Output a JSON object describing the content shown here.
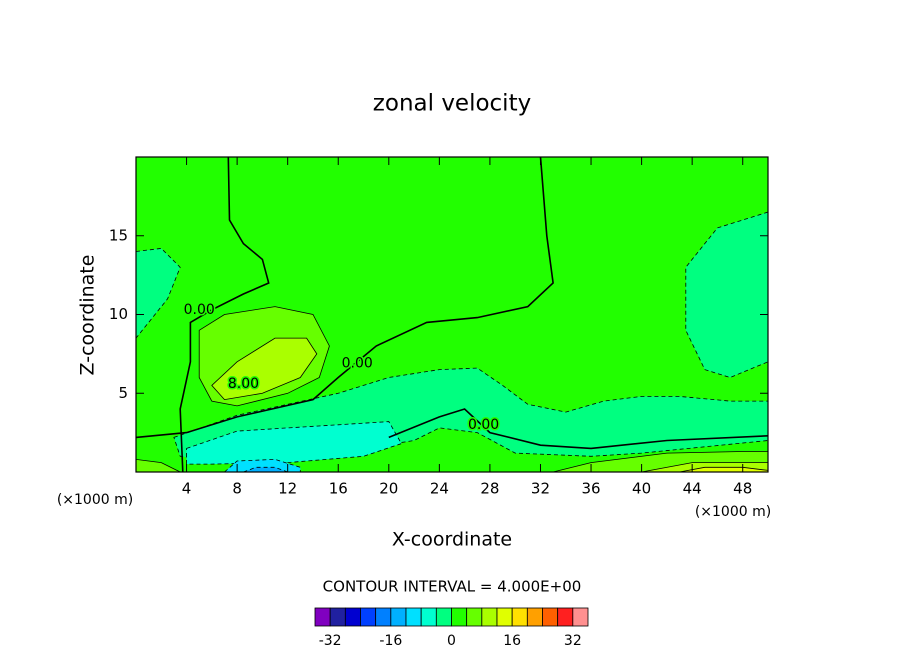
{
  "chart_data": {
    "type": "contour",
    "title": "zonal velocity",
    "xlabel": "X-coordinate",
    "ylabel": "Z-coordinate",
    "x_unit_label": "(×1000 m)",
    "xlim": [
      0,
      50
    ],
    "ylim": [
      0,
      20
    ],
    "xticks": [
      4,
      8,
      12,
      16,
      20,
      24,
      28,
      32,
      36,
      40,
      44,
      48
    ],
    "yticks": [
      5,
      10,
      15
    ],
    "regions": [
      {
        "level": 0,
        "points": [
          [
            0,
            0
          ],
          [
            50,
            0
          ],
          [
            50,
            20
          ],
          [
            0,
            20
          ]
        ]
      },
      {
        "level": -4,
        "points": [
          [
            0,
            14
          ],
          [
            2,
            14.2
          ],
          [
            3.5,
            13
          ],
          [
            2.5,
            11
          ],
          [
            0.5,
            9
          ],
          [
            0,
            8.5
          ]
        ]
      },
      {
        "level": -4,
        "points": [
          [
            50,
            16.5
          ],
          [
            46,
            15.5
          ],
          [
            43.5,
            13
          ],
          [
            43.5,
            9
          ],
          [
            45,
            6.5
          ],
          [
            47,
            6
          ],
          [
            50,
            7
          ]
        ]
      },
      {
        "level": -4,
        "points": [
          [
            3,
            2.2
          ],
          [
            8,
            3.6
          ],
          [
            12,
            4.3
          ],
          [
            16,
            5
          ],
          [
            20,
            6
          ],
          [
            24,
            6.5
          ],
          [
            27,
            6.6
          ],
          [
            29,
            5.5
          ],
          [
            31,
            4.3
          ],
          [
            34,
            3.8
          ],
          [
            37,
            4.5
          ],
          [
            40,
            4.8
          ],
          [
            43,
            4.8
          ],
          [
            47,
            4.5
          ],
          [
            50,
            4.5
          ],
          [
            50,
            2
          ],
          [
            40,
            1.2
          ],
          [
            36,
            1
          ],
          [
            30,
            1.2
          ],
          [
            27,
            2.5
          ],
          [
            24,
            2.8
          ],
          [
            22,
            2
          ],
          [
            18,
            1.5
          ],
          [
            14,
            1
          ],
          [
            10,
            0.8
          ],
          [
            6,
            0.7
          ],
          [
            3.5,
            1
          ]
        ]
      },
      {
        "level": -8,
        "points": [
          [
            4,
            1.5
          ],
          [
            8,
            2.6
          ],
          [
            12,
            2.8
          ],
          [
            16,
            3
          ],
          [
            20,
            3.2
          ],
          [
            21,
            1.8
          ],
          [
            18,
            1
          ],
          [
            12,
            0.6
          ],
          [
            6,
            0.5
          ],
          [
            4,
            0.5
          ]
        ]
      },
      {
        "level": -12,
        "points": [
          [
            7,
            0
          ],
          [
            8,
            0.7
          ],
          [
            11,
            0.8
          ],
          [
            13,
            0.3
          ],
          [
            13,
            0
          ]
        ]
      },
      {
        "level": -16,
        "points": [
          [
            8.5,
            0
          ],
          [
            9.5,
            0.3
          ],
          [
            11,
            0.3
          ],
          [
            12,
            0
          ]
        ]
      },
      {
        "level": 4,
        "points": [
          [
            5,
            9
          ],
          [
            7,
            10
          ],
          [
            11,
            10.5
          ],
          [
            14,
            10
          ],
          [
            15.3,
            8
          ],
          [
            14.5,
            6
          ],
          [
            12,
            5
          ],
          [
            8,
            4.2
          ],
          [
            6,
            4.5
          ],
          [
            5,
            6
          ]
        ]
      },
      {
        "level": 8,
        "points": [
          [
            6,
            5.5
          ],
          [
            8,
            7
          ],
          [
            11,
            8.5
          ],
          [
            13.5,
            8.5
          ],
          [
            14.3,
            7.5
          ],
          [
            13,
            6
          ],
          [
            10,
            5
          ],
          [
            7,
            4.6
          ]
        ]
      },
      {
        "level": 4,
        "points": [
          [
            33,
            0
          ],
          [
            36,
            0.6
          ],
          [
            42,
            1.2
          ],
          [
            48,
            1.3
          ],
          [
            50,
            1.3
          ],
          [
            50,
            0
          ]
        ]
      },
      {
        "level": 8,
        "points": [
          [
            40,
            0
          ],
          [
            44,
            0.6
          ],
          [
            50,
            0.6
          ],
          [
            50,
            0
          ]
        ]
      },
      {
        "level": 12,
        "points": [
          [
            43,
            0
          ],
          [
            45,
            0.3
          ],
          [
            48,
            0.3
          ],
          [
            50,
            0.1
          ],
          [
            50,
            0
          ]
        ]
      },
      {
        "level": 4,
        "points": [
          [
            0,
            0
          ],
          [
            0,
            0.8
          ],
          [
            2,
            0.6
          ],
          [
            3.5,
            0
          ]
        ]
      }
    ],
    "contours": [
      {
        "level": 0,
        "points": [
          [
            7.3,
            20
          ],
          [
            7.4,
            16
          ],
          [
            8.5,
            14.5
          ],
          [
            10,
            13.5
          ],
          [
            10.5,
            12
          ],
          [
            8.5,
            11.3
          ],
          [
            6,
            10.3
          ],
          [
            4.3,
            9.5
          ],
          [
            4.3,
            7
          ],
          [
            3.5,
            4
          ],
          [
            3.7,
            0
          ]
        ]
      },
      {
        "level": 0,
        "points": [
          [
            32,
            20
          ],
          [
            32.5,
            15
          ],
          [
            33,
            12
          ],
          [
            31,
            10.5
          ],
          [
            27,
            9.8
          ],
          [
            23,
            9.5
          ],
          [
            19,
            8
          ],
          [
            16,
            6
          ],
          [
            14,
            4.6
          ],
          [
            8,
            3.5
          ],
          [
            4,
            2.5
          ],
          [
            0,
            2.2
          ]
        ]
      },
      {
        "level": 0,
        "points": [
          [
            20,
            2.2
          ],
          [
            24,
            3.5
          ],
          [
            26,
            4
          ],
          [
            28,
            2.5
          ],
          [
            32,
            1.7
          ],
          [
            36,
            1.5
          ],
          [
            42,
            2
          ],
          [
            50,
            2.3
          ]
        ]
      }
    ],
    "contour_labels": [
      {
        "text": "0.00",
        "x": 5,
        "z": 10.3
      },
      {
        "text": "8.00",
        "x": 8.5,
        "z": 5.6
      },
      {
        "text": "0.00",
        "x": 17.5,
        "z": 6.9
      },
      {
        "text": "0.00",
        "x": 27.5,
        "z": 3
      }
    ],
    "colorbar_title": "CONTOUR INTERVAL = 4.000E+00",
    "levels": [
      -36,
      -32,
      -28,
      -24,
      -20,
      -16,
      -12,
      -8,
      -4,
      0,
      4,
      8,
      12,
      16,
      20,
      24,
      28,
      32,
      36
    ],
    "colors": [
      "#8000c0",
      "#2020a0",
      "#0000d0",
      "#0040ff",
      "#0080ff",
      "#00b0ff",
      "#00e0ff",
      "#00ffd0",
      "#00ff80",
      "#22ff00",
      "#66ff00",
      "#aaff00",
      "#e0ff00",
      "#ffe000",
      "#ffa000",
      "#ff6000",
      "#ff2020",
      "#ff9090"
    ],
    "colorbar_ticks": [
      -32,
      -16,
      0,
      16,
      32
    ]
  }
}
